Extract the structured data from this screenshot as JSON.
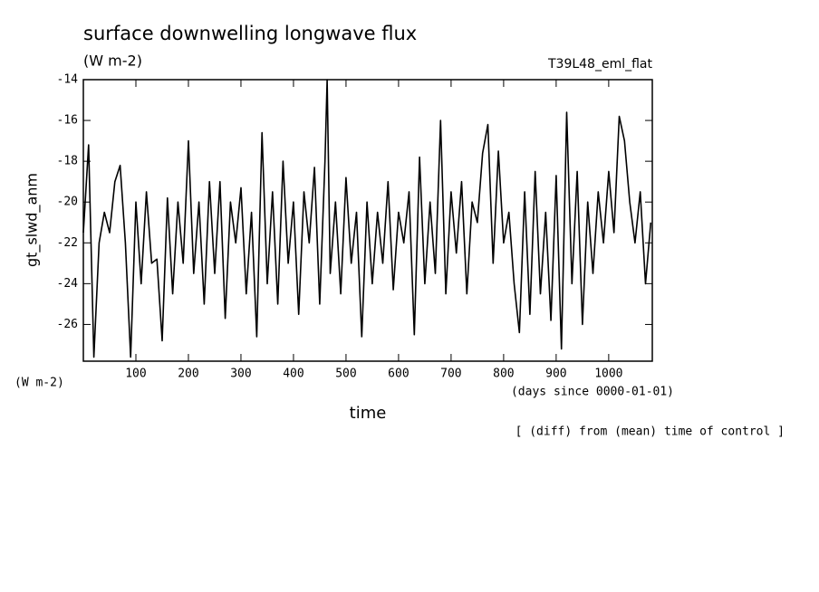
{
  "chart_data": {
    "type": "line",
    "title": "surface downwelling longwave flux",
    "subtitle": "(W m-2)",
    "run_label": "T39L48_eml_flat",
    "y_label": "gt_slwd_anm",
    "y_units": "(W m-2)",
    "x_units": "(days since 0000-01-01)",
    "x_label": "time",
    "note": "[ (diff) from (mean) time of control ]",
    "color": "#000000",
    "xlim": [
      0,
      1083
    ],
    "ylim": [
      -27.8,
      -14
    ],
    "xticks": [
      100,
      200,
      300,
      400,
      500,
      600,
      700,
      800,
      900,
      1000
    ],
    "yticks": [
      -14,
      -16,
      -18,
      -20,
      -22,
      -24,
      -26
    ],
    "x": [
      0,
      10,
      20,
      30,
      40,
      50,
      60,
      70,
      80,
      90,
      100,
      110,
      120,
      130,
      140,
      150,
      160,
      170,
      180,
      190,
      200,
      210,
      220,
      230,
      240,
      250,
      260,
      270,
      280,
      290,
      300,
      310,
      320,
      330,
      340,
      350,
      360,
      370,
      380,
      390,
      400,
      410,
      420,
      430,
      440,
      450,
      460,
      464,
      470,
      480,
      490,
      500,
      510,
      520,
      530,
      540,
      550,
      560,
      570,
      580,
      590,
      600,
      610,
      620,
      630,
      640,
      650,
      660,
      670,
      680,
      690,
      700,
      710,
      720,
      730,
      740,
      750,
      760,
      770,
      780,
      790,
      800,
      810,
      820,
      830,
      840,
      850,
      860,
      870,
      880,
      890,
      900,
      910,
      920,
      930,
      940,
      950,
      960,
      970,
      980,
      990,
      1000,
      1010,
      1020,
      1030,
      1040,
      1050,
      1060,
      1070,
      1080
    ],
    "values": [
      -21.5,
      -17.2,
      -27.6,
      -22,
      -20.5,
      -21.5,
      -19,
      -18.2,
      -22,
      -27.6,
      -20,
      -24,
      -19.5,
      -23,
      -22.8,
      -26.8,
      -19.8,
      -24.5,
      -20,
      -23,
      -17,
      -23.5,
      -20,
      -25,
      -19,
      -23.5,
      -19,
      -25.7,
      -20,
      -22,
      -19.3,
      -24.5,
      -20.5,
      -26.6,
      -16.6,
      -24,
      -19.5,
      -25,
      -18,
      -23,
      -20,
      -25.5,
      -19.5,
      -22,
      -18.3,
      -25,
      -18,
      -14,
      -23.5,
      -20,
      -24.5,
      -18.8,
      -23,
      -20.5,
      -26.6,
      -20,
      -24,
      -20.5,
      -23,
      -19,
      -24.3,
      -20.5,
      -22,
      -19.5,
      -26.5,
      -17.8,
      -24,
      -20,
      -23.5,
      -16,
      -24.5,
      -19.5,
      -22.5,
      -19,
      -24.5,
      -20,
      -21,
      -17.6,
      -16.2,
      -23,
      -17.5,
      -22,
      -20.5,
      -24,
      -26.4,
      -19.5,
      -25.5,
      -18.5,
      -24.5,
      -20.5,
      -25.8,
      -18.7,
      -27.2,
      -15.6,
      -24,
      -18.5,
      -26,
      -20,
      -23.5,
      -19.5,
      -22,
      -18.5,
      -21.5,
      -15.8,
      -17,
      -20,
      -22,
      -19.5,
      -24,
      -21
    ]
  }
}
